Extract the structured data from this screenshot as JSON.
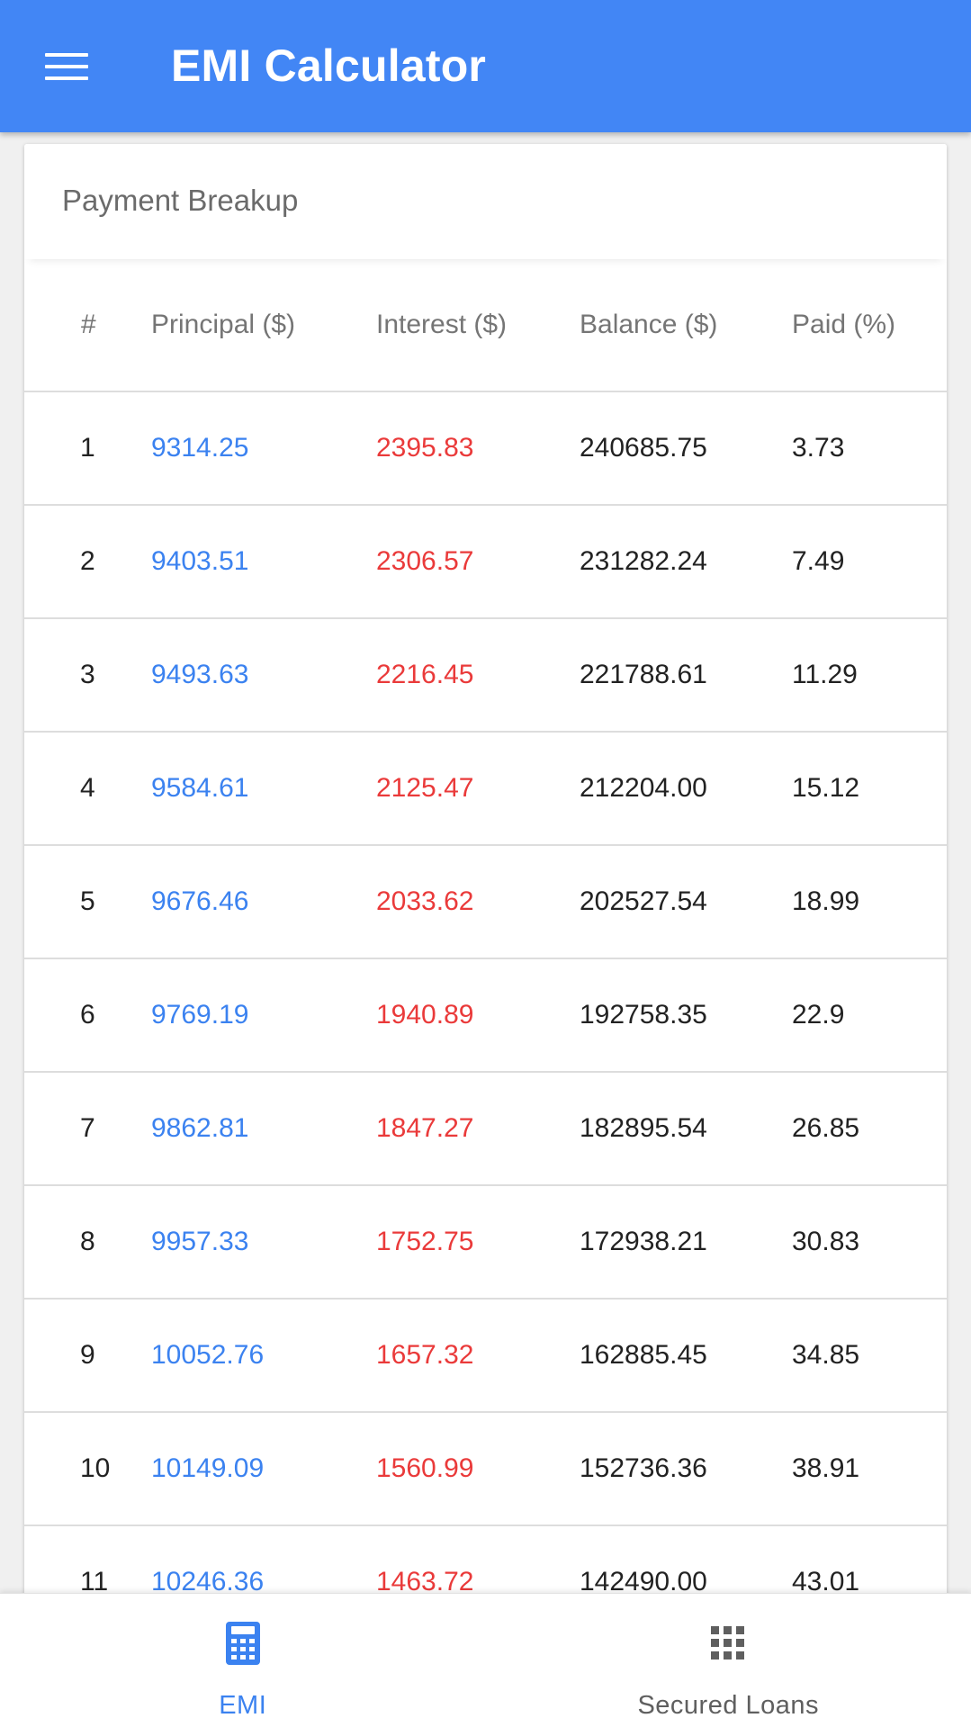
{
  "appbar": {
    "title": "EMI Calculator",
    "menu_icon": "hamburger-menu-icon",
    "background": "#4286f5"
  },
  "card": {
    "title": "Payment Breakup"
  },
  "table": {
    "headers": [
      "#",
      "Principal ($)",
      "Interest ($)",
      "Balance ($)",
      "Paid (%)"
    ],
    "rows": [
      [
        "1",
        "9314.25",
        "2395.83",
        "240685.75",
        "3.73"
      ],
      [
        "2",
        "9403.51",
        "2306.57",
        "231282.24",
        "7.49"
      ],
      [
        "3",
        "9493.63",
        "2216.45",
        "221788.61",
        "11.29"
      ],
      [
        "4",
        "9584.61",
        "2125.47",
        "212204.00",
        "15.12"
      ],
      [
        "5",
        "9676.46",
        "2033.62",
        "202527.54",
        "18.99"
      ],
      [
        "6",
        "9769.19",
        "1940.89",
        "192758.35",
        "22.9"
      ],
      [
        "7",
        "9862.81",
        "1847.27",
        "182895.54",
        "26.85"
      ],
      [
        "8",
        "9957.33",
        "1752.75",
        "172938.21",
        "30.83"
      ],
      [
        "9",
        "10052.76",
        "1657.32",
        "162885.45",
        "34.85"
      ],
      [
        "10",
        "10149.09",
        "1560.99",
        "152736.36",
        "38.91"
      ],
      [
        "11",
        "10246.36",
        "1463.72",
        "142490.00",
        "43.01"
      ]
    ],
    "colors": {
      "principal": "#3b82f0",
      "interest": "#ea3a3a",
      "text": "#222222"
    }
  },
  "bottom_nav": {
    "items": [
      {
        "label": "EMI",
        "icon": "calculator-icon",
        "active": true
      },
      {
        "label": "Secured Loans",
        "icon": "grid-icon",
        "active": false
      }
    ],
    "active_color": "#3b82f0"
  }
}
